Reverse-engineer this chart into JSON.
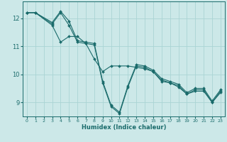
{
  "xlabel": "Humidex (Indice chaleur)",
  "ylabel": "",
  "bg_color": "#cce8e8",
  "grid_color": "#aad4d4",
  "line_color": "#1a6b6b",
  "xlim": [
    -0.5,
    23.5
  ],
  "ylim": [
    8.5,
    12.6
  ],
  "yticks": [
    9,
    10,
    11,
    12
  ],
  "xticks": [
    0,
    1,
    2,
    3,
    4,
    5,
    6,
    7,
    8,
    9,
    10,
    11,
    12,
    13,
    14,
    15,
    16,
    17,
    18,
    19,
    20,
    21,
    22,
    23
  ],
  "lines": [
    {
      "x": [
        0,
        1,
        3,
        4,
        5,
        6,
        7,
        8,
        9,
        10,
        11,
        12,
        13,
        14,
        15,
        16,
        17,
        18,
        19,
        20,
        21,
        22,
        23
      ],
      "y": [
        12.2,
        12.2,
        11.85,
        12.25,
        11.9,
        11.2,
        11.15,
        11.1,
        9.75,
        8.9,
        8.65,
        9.6,
        10.35,
        10.3,
        10.15,
        9.85,
        9.75,
        9.65,
        9.35,
        9.5,
        9.5,
        9.05,
        9.45
      ]
    },
    {
      "x": [
        0,
        1,
        3,
        4,
        5,
        6,
        7,
        8,
        9,
        10,
        11,
        12,
        13,
        14,
        15,
        16,
        17,
        18,
        19,
        20,
        21,
        22,
        23
      ],
      "y": [
        12.2,
        12.2,
        11.8,
        12.2,
        11.75,
        11.15,
        11.1,
        11.05,
        9.7,
        8.85,
        8.6,
        9.55,
        10.3,
        10.25,
        10.1,
        9.8,
        9.7,
        9.6,
        9.3,
        9.45,
        9.45,
        9.0,
        9.4
      ]
    },
    {
      "x": [
        0,
        1,
        3,
        4,
        5,
        6,
        7,
        8,
        9,
        10,
        11,
        12,
        13,
        14,
        15,
        16,
        17,
        18,
        19,
        20,
        21,
        22,
        23
      ],
      "y": [
        12.2,
        12.2,
        11.75,
        11.15,
        11.35,
        11.35,
        11.1,
        10.55,
        10.1,
        10.3,
        10.3,
        10.3,
        10.25,
        10.2,
        10.1,
        9.75,
        9.7,
        9.55,
        9.3,
        9.4,
        9.4,
        9.0,
        9.35
      ]
    }
  ]
}
